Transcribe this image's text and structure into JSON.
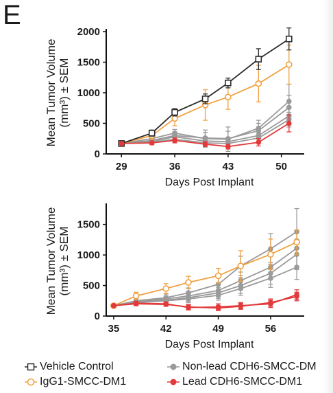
{
  "panel_letter": "E",
  "watermark": "",
  "colors": {
    "vehicle": "#2b2b2b",
    "igg1": "#f0a040",
    "nonlead": "#9a9a9a",
    "lead": "#e23a3a",
    "axis": "#111111"
  },
  "legend": [
    {
      "label": "Vehicle Control",
      "color": "#2b2b2b",
      "marker": "open-square"
    },
    {
      "label": "IgG1-SMCC-DM1",
      "color": "#f0a040",
      "marker": "open-circle"
    },
    {
      "label": "Non-lead CDH6-SMCC-DM",
      "color": "#9a9a9a",
      "marker": "filled-circle"
    },
    {
      "label": "Lead CDH6-SMCC-DM1",
      "color": "#e23a3a",
      "marker": "filled-circle"
    }
  ],
  "chart_data": [
    {
      "type": "line",
      "xlabel": "Days Post Implant",
      "ylabel_line1": "Mean Tumor Volume",
      "ylabel_line2": "(mm³) ± SEM",
      "xlim": [
        27,
        53
      ],
      "ylim": [
        0,
        2000
      ],
      "xticks": [
        29,
        36,
        43,
        50
      ],
      "yticks": [
        0,
        500,
        1000,
        1500,
        2000
      ],
      "x": [
        29,
        33,
        36,
        40,
        43,
        47,
        51
      ],
      "series": [
        {
          "name": "Vehicle Control",
          "group": "vehicle",
          "values": [
            170,
            340,
            680,
            900,
            1160,
            1550,
            1880
          ],
          "err": [
            25,
            50,
            60,
            80,
            80,
            170,
            180
          ]
        },
        {
          "name": "IgG1-SMCC-DM1",
          "group": "igg1",
          "values": [
            170,
            300,
            580,
            800,
            930,
            1150,
            1460
          ],
          "err": [
            20,
            60,
            120,
            250,
            200,
            300,
            320
          ]
        },
        {
          "name": "Non-lead CDH6-SMCC-DM",
          "group": "nonlead",
          "values": [
            170,
            250,
            340,
            250,
            240,
            420,
            860
          ],
          "err": [
            20,
            40,
            60,
            140,
            200,
            130,
            280
          ]
        },
        {
          "name": "Non-lead CDH6-SMCC-DM",
          "group": "nonlead",
          "values": [
            170,
            220,
            300,
            260,
            250,
            380,
            760
          ],
          "err": [
            20,
            40,
            60,
            90,
            120,
            120,
            200
          ]
        },
        {
          "name": "Non-lead CDH6-SMCC-DM",
          "group": "nonlead",
          "values": [
            170,
            200,
            280,
            210,
            200,
            300,
            620
          ],
          "err": [
            20,
            30,
            50,
            70,
            70,
            90,
            150
          ]
        },
        {
          "name": "Non-lead CDH6-SMCC-DM",
          "group": "nonlead",
          "values": [
            170,
            190,
            240,
            180,
            170,
            260,
            560
          ],
          "err": [
            20,
            30,
            40,
            60,
            60,
            80,
            120
          ]
        },
        {
          "name": "Lead CDH6-SMCC-DM1",
          "group": "lead",
          "values": [
            170,
            180,
            220,
            160,
            120,
            190,
            500
          ],
          "err": [
            20,
            30,
            40,
            40,
            40,
            60,
            140
          ]
        }
      ]
    },
    {
      "type": "line",
      "xlabel": "Days Post Implant",
      "ylabel_line1": "Mean Tumor Volume",
      "ylabel_line2": "(mm³) ± SEM",
      "xlim": [
        34,
        60.5
      ],
      "ylim": [
        0,
        1800
      ],
      "xticks": [
        35,
        42,
        49,
        56
      ],
      "yticks": [
        0,
        500,
        1000,
        1500
      ],
      "x": [
        35,
        38,
        42,
        45,
        49,
        52,
        56,
        59.5
      ],
      "series": [
        {
          "name": "IgG1-SMCC-DM1",
          "group": "igg1",
          "values": [
            170,
            330,
            450,
            550,
            660,
            820,
            1010,
            1210
          ],
          "err": [
            20,
            60,
            80,
            100,
            120,
            250,
            250,
            200
          ]
        },
        {
          "name": "Non-lead CDH6-SMCC-DM",
          "group": "nonlead",
          "values": [
            170,
            250,
            300,
            380,
            520,
            820,
            1100,
            1380
          ],
          "err": [
            20,
            50,
            60,
            80,
            120,
            160,
            250,
            380
          ]
        },
        {
          "name": "Non-lead CDH6-SMCC-DM",
          "group": "nonlead",
          "values": [
            170,
            240,
            280,
            330,
            420,
            580,
            800,
            1110
          ],
          "err": [
            20,
            40,
            50,
            70,
            100,
            140,
            200,
            300
          ]
        },
        {
          "name": "Non-lead CDH6-SMCC-DM",
          "group": "nonlead",
          "values": [
            170,
            230,
            260,
            300,
            380,
            500,
            700,
            1010
          ],
          "err": [
            20,
            40,
            50,
            60,
            90,
            130,
            180,
            250
          ]
        },
        {
          "name": "Non-lead CDH6-SMCC-DM",
          "group": "nonlead",
          "values": [
            170,
            220,
            250,
            280,
            340,
            450,
            620,
            800
          ],
          "err": [
            20,
            40,
            50,
            60,
            80,
            110,
            150,
            200
          ]
        },
        {
          "name": "Lead CDH6-SMCC-DM1",
          "group": "lead",
          "values": [
            170,
            210,
            200,
            140,
            150,
            170,
            200,
            350
          ],
          "err": [
            20,
            30,
            30,
            40,
            50,
            50,
            60,
            80
          ]
        },
        {
          "name": "Lead CDH6-SMCC-DM1",
          "group": "lead",
          "values": [
            170,
            200,
            190,
            150,
            130,
            160,
            220,
            320
          ],
          "err": [
            20,
            30,
            30,
            40,
            40,
            50,
            60,
            70
          ]
        }
      ]
    }
  ]
}
